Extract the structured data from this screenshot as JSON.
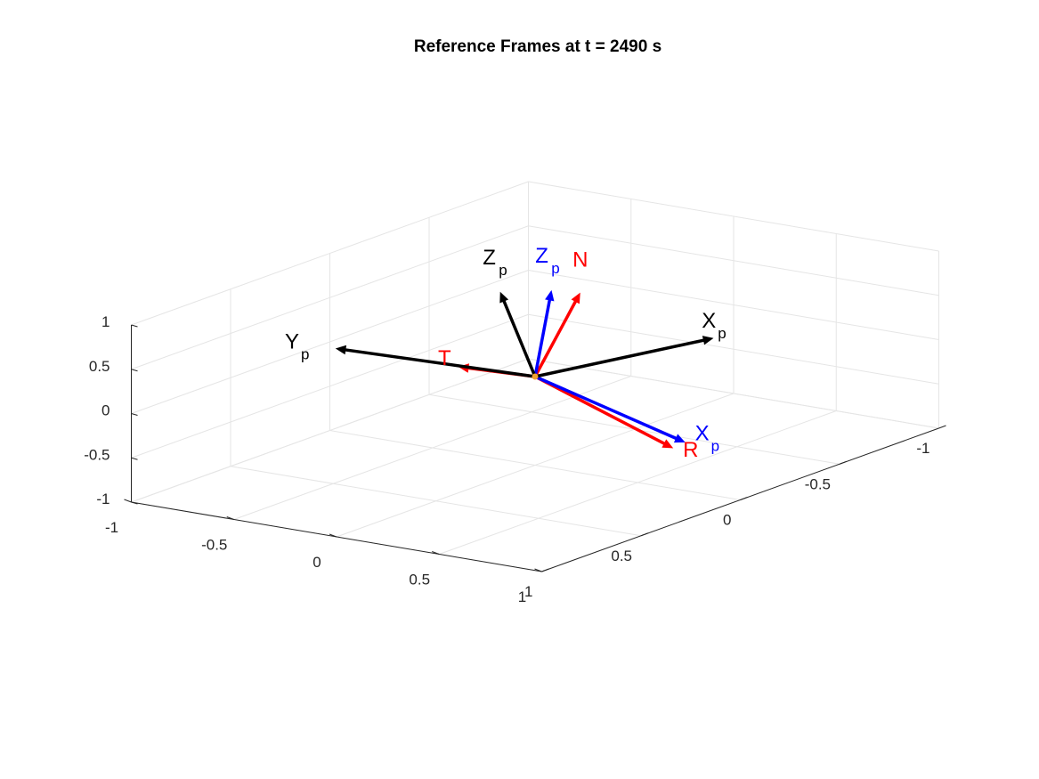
{
  "chart_data": {
    "type": "quiver3d",
    "title": "Reference Frames at t = 2490 s",
    "xlabel": "",
    "ylabel": "",
    "zlabel": "",
    "xlim": [
      -1,
      1
    ],
    "ylim": [
      -1,
      1
    ],
    "zlim": [
      -1,
      1
    ],
    "x_ticks": [
      "-1",
      "-0.5",
      "0",
      "0.5",
      "1"
    ],
    "y_ticks": [
      "-1",
      "-0.5",
      "0",
      "0.5",
      "1"
    ],
    "z_ticks": [
      "-1",
      "-0.5",
      "0",
      "0.5",
      "1"
    ],
    "grid": true,
    "origin": [
      0,
      0,
      0
    ],
    "vectors": [
      {
        "label": "R",
        "sub": "",
        "color": "#ff0000",
        "vec": [
          0.93,
          0.27,
          -0.22
        ]
      },
      {
        "label": "T",
        "sub": "",
        "color": "#ff0000",
        "vec": [
          -0.34,
          0.03,
          0.0
        ]
      },
      {
        "label": "N",
        "sub": "",
        "color": "#ff0000",
        "vec": [
          0.15,
          -0.07,
          0.94
        ]
      },
      {
        "label": "X",
        "sub": "p",
        "color": "#0000ff",
        "vec": [
          0.95,
          0.23,
          -0.18
        ]
      },
      {
        "label": "Z",
        "sub": "p",
        "color": "#0000ff",
        "vec": [
          0.05,
          -0.03,
          0.96
        ]
      },
      {
        "label": "X",
        "sub": "p",
        "color": "#000000",
        "vec": [
          0.4,
          -0.48,
          0.2
        ]
      },
      {
        "label": "Y",
        "sub": "p",
        "color": "#000000",
        "vec": [
          -0.9,
          0.07,
          0.02
        ]
      },
      {
        "label": "Z",
        "sub": "p",
        "color": "#000000",
        "vec": [
          -0.12,
          0.05,
          0.94
        ]
      }
    ],
    "origin_marker_color": "#f0a030"
  }
}
